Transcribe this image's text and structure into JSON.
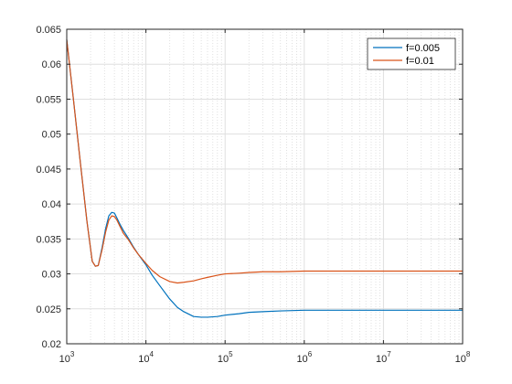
{
  "chart_data": {
    "type": "line",
    "x_scale": "log",
    "xlim": [
      1000,
      100000000
    ],
    "ylim": [
      0.02,
      0.065
    ],
    "grid": true,
    "minor_grid_x": true,
    "legend_placement": "top-right",
    "x_ticks": [
      {
        "value": 1000,
        "base": "10",
        "exp": "3"
      },
      {
        "value": 10000,
        "base": "10",
        "exp": "4"
      },
      {
        "value": 100000,
        "base": "10",
        "exp": "5"
      },
      {
        "value": 1000000,
        "base": "10",
        "exp": "6"
      },
      {
        "value": 10000000,
        "base": "10",
        "exp": "7"
      },
      {
        "value": 100000000,
        "base": "10",
        "exp": "8"
      }
    ],
    "y_ticks": [
      {
        "value": 0.02,
        "label": "0.02"
      },
      {
        "value": 0.025,
        "label": "0.025"
      },
      {
        "value": 0.03,
        "label": "0.03"
      },
      {
        "value": 0.035,
        "label": "0.035"
      },
      {
        "value": 0.04,
        "label": "0.04"
      },
      {
        "value": 0.045,
        "label": "0.045"
      },
      {
        "value": 0.05,
        "label": "0.05"
      },
      {
        "value": 0.055,
        "label": "0.055"
      },
      {
        "value": 0.06,
        "label": "0.06"
      },
      {
        "value": 0.065,
        "label": "0.065"
      }
    ],
    "series": [
      {
        "name": "f=0.005",
        "color": "#0072BD",
        "x": [
          1000,
          1200,
          1500,
          1800,
          2100,
          2300,
          2500,
          2800,
          3100,
          3400,
          3700,
          4000,
          4300,
          4700,
          5200,
          6000,
          7000,
          8000,
          10000,
          12000,
          15000,
          20000,
          25000,
          30000,
          40000,
          50000,
          60000,
          80000,
          100000,
          150000,
          200000,
          300000,
          500000,
          1000000,
          3000000,
          10000000,
          100000000
        ],
        "y": [
          0.0635,
          0.0555,
          0.0455,
          0.0375,
          0.0318,
          0.0311,
          0.0312,
          0.0338,
          0.0365,
          0.0383,
          0.0388,
          0.0387,
          0.038,
          0.0371,
          0.0362,
          0.0351,
          0.0338,
          0.0328,
          0.0313,
          0.0298,
          0.0283,
          0.0264,
          0.0252,
          0.0246,
          0.0239,
          0.0238,
          0.0238,
          0.0239,
          0.0241,
          0.0243,
          0.0245,
          0.0246,
          0.0247,
          0.0248,
          0.0248,
          0.0248,
          0.0248
        ]
      },
      {
        "name": "f=0.01",
        "color": "#D95319",
        "x": [
          1000,
          1200,
          1500,
          1800,
          2100,
          2300,
          2500,
          2800,
          3100,
          3400,
          3700,
          4000,
          4300,
          4700,
          5200,
          6000,
          7000,
          8000,
          10000,
          12000,
          15000,
          20000,
          25000,
          30000,
          40000,
          50000,
          60000,
          80000,
          100000,
          150000,
          200000,
          300000,
          500000,
          1000000,
          3000000,
          10000000,
          100000000
        ],
        "y": [
          0.0635,
          0.0555,
          0.0455,
          0.0375,
          0.0318,
          0.0311,
          0.0312,
          0.0335,
          0.036,
          0.0377,
          0.0383,
          0.0382,
          0.0377,
          0.0368,
          0.0358,
          0.0349,
          0.0337,
          0.0328,
          0.0315,
          0.0305,
          0.0296,
          0.0289,
          0.0287,
          0.0288,
          0.029,
          0.0293,
          0.0295,
          0.0298,
          0.03,
          0.0301,
          0.0302,
          0.0303,
          0.0303,
          0.0304,
          0.0304,
          0.0304,
          0.0304
        ]
      }
    ]
  }
}
